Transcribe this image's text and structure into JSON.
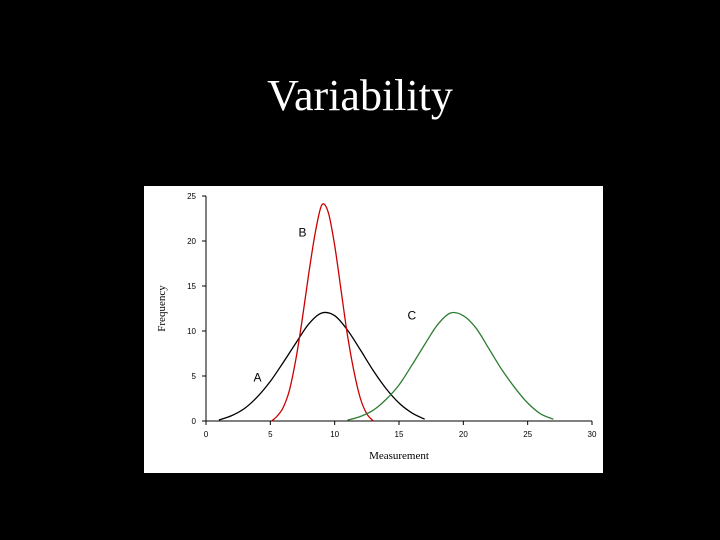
{
  "slide": {
    "title": "Variability"
  },
  "chart_data": {
    "type": "line",
    "title": "",
    "xlabel": "Measurement",
    "ylabel": "Frequency",
    "xlim": [
      0,
      30
    ],
    "ylim": [
      0,
      25
    ],
    "x_ticks": [
      0,
      5,
      10,
      15,
      20,
      25,
      30
    ],
    "y_ticks": [
      0,
      5,
      10,
      15,
      20,
      25
    ],
    "grid": false,
    "legend": "none",
    "series": [
      {
        "name": "A",
        "color": "#000000",
        "x": [
          1,
          2,
          3,
          4,
          5,
          6,
          7,
          8,
          9,
          10,
          11,
          12,
          13,
          14,
          15,
          16,
          17
        ],
        "y": [
          0.1,
          0.6,
          1.4,
          2.7,
          4.4,
          6.5,
          8.7,
          10.8,
          12.0,
          11.7,
          10.1,
          7.9,
          5.6,
          3.6,
          2.0,
          0.9,
          0.2
        ]
      },
      {
        "name": "B",
        "color": "#cc0000",
        "x": [
          5.1,
          5.5,
          6,
          6.5,
          7,
          7.5,
          8,
          8.5,
          9,
          9.5,
          10,
          10.5,
          11,
          11.5,
          12,
          12.5,
          13
        ],
        "y": [
          0,
          0.5,
          1.5,
          3.5,
          7.0,
          11.5,
          16.5,
          21.0,
          24.0,
          23.2,
          19.5,
          14.5,
          9.5,
          5.5,
          2.5,
          0.8,
          0
        ]
      },
      {
        "name": "C",
        "color": "#2e7d32",
        "x": [
          11,
          12,
          13,
          14,
          15,
          16,
          17,
          18,
          19,
          20,
          21,
          22,
          23,
          24,
          25,
          26,
          27
        ],
        "y": [
          0.1,
          0.5,
          1.2,
          2.4,
          4.0,
          6.2,
          8.5,
          10.7,
          12.0,
          11.7,
          10.3,
          8.0,
          5.7,
          3.7,
          2.0,
          0.8,
          0.2
        ]
      }
    ],
    "annotations": [
      {
        "text": "A",
        "x": 4,
        "y": 4.4
      },
      {
        "text": "B",
        "x": 7.5,
        "y": 20.5
      },
      {
        "text": "C",
        "x": 16,
        "y": 11.3
      }
    ]
  }
}
